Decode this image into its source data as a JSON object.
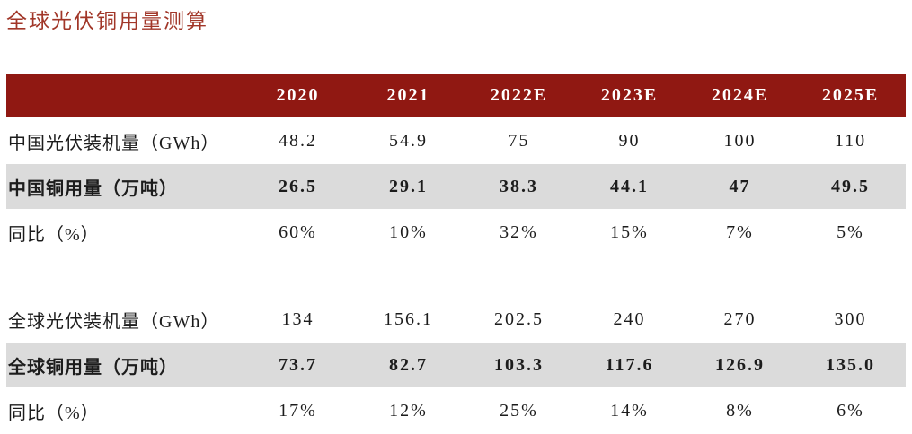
{
  "page": {
    "title": "全球光伏铜用量测算"
  },
  "colors": {
    "title": "#A13628",
    "header_bg": "#901812",
    "highlight_bg": "#DBDBDB",
    "header_text": "#FFFFFF",
    "body_text": "#1C1C1C"
  },
  "table": {
    "columns": [
      "",
      "2020",
      "2021",
      "2022E",
      "2023E",
      "2024E",
      "2025E"
    ],
    "rows": [
      {
        "label": "中国光伏装机量（GWh）",
        "values": [
          "48.2",
          "54.9",
          "75",
          "90",
          "100",
          "110"
        ],
        "style": "normal"
      },
      {
        "label": "中国铜用量（万吨）",
        "values": [
          "26.5",
          "29.1",
          "38.3",
          "44.1",
          "47",
          "49.5"
        ],
        "style": "highlight"
      },
      {
        "label": "同比（%）",
        "values": [
          "60%",
          "10%",
          "32%",
          "15%",
          "7%",
          "5%"
        ],
        "style": "normal"
      },
      {
        "label": "",
        "values": [
          "",
          "",
          "",
          "",
          "",
          ""
        ],
        "style": "spacer"
      },
      {
        "label": "全球光伏装机量（GWh）",
        "values": [
          "134",
          "156.1",
          "202.5",
          "240",
          "270",
          "300"
        ],
        "style": "normal"
      },
      {
        "label": "全球铜用量（万吨）",
        "values": [
          "73.7",
          "82.7",
          "103.3",
          "117.6",
          "126.9",
          "135.0"
        ],
        "style": "highlight"
      },
      {
        "label": "同比（%）",
        "values": [
          "17%",
          "12%",
          "25%",
          "14%",
          "8%",
          "6%"
        ],
        "style": "normal"
      }
    ]
  }
}
